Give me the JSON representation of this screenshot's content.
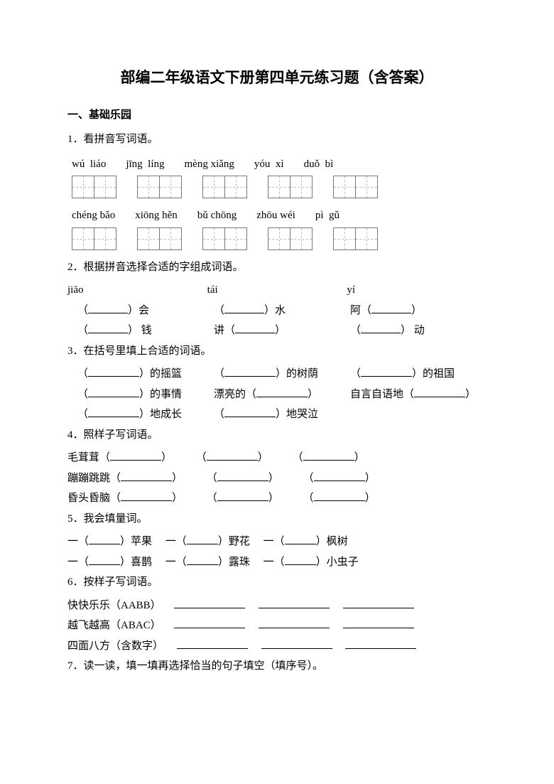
{
  "title": "部编二年级语文下册第四单元练习题（含答案）",
  "section1": "一、基础乐园",
  "q1": {
    "prompt": "1．看拼音写词语。",
    "row1": [
      "wú  liáo",
      "jīng  líng",
      "mèng xiǎng",
      "yóu  xì",
      "duǒ  bì"
    ],
    "row2": [
      "chéng bǎo",
      "xiōng hěn",
      "bǔ chōng",
      "zhōu wéi",
      "pì  gǔ"
    ]
  },
  "q2": {
    "prompt": "2．根据拼音选择合适的字组成词语。",
    "heads": {
      "a": "jiāo",
      "b": "tái",
      "c": "yí"
    },
    "lines": [
      {
        "a_pre": "（",
        "a_suf": "）会",
        "b_pre": "（",
        "b_suf": "）水",
        "c_pre": "阿（",
        "c_suf": "）"
      },
      {
        "a_pre": "（",
        "a_suf": "） 钱",
        "b_pre": "讲（",
        "b_suf": "）",
        "c_pre": "（",
        "c_suf": "） 动"
      }
    ]
  },
  "q3": {
    "prompt": "3．在括号里填上合适的词语。",
    "rows": [
      [
        "（",
        "）的摇篮",
        "（",
        "）的树荫",
        "（",
        "）的祖国"
      ],
      [
        "（",
        "）的事情",
        "漂亮的（",
        "）",
        "自言自语地（",
        "）"
      ],
      [
        "（",
        "）地成长",
        "（",
        "）地哭泣",
        "",
        ""
      ]
    ]
  },
  "q4": {
    "prompt": "4．照样子写词语。",
    "l1": "毛茸茸（",
    "l2": "蹦蹦跳跳（",
    "l3": "昏头昏脑（"
  },
  "q5": {
    "prompt": "5．我会填量词。",
    "items1": [
      "一（",
      "）苹果",
      "一（",
      "）野花",
      "一（",
      "）枫树"
    ],
    "items2": [
      "一（",
      "）喜鹊",
      "一（",
      "）露珠",
      "一（",
      "）小虫子"
    ]
  },
  "q6": {
    "prompt": "6．按样子写词语。",
    "l1": "快快乐乐（AABB）",
    "l2": "越飞越高（ABAC）",
    "l3": "四面八方（含数字）"
  },
  "q7": {
    "prompt": "7．读一读，填一填再选择恰当的句子填空（填序号）。"
  }
}
